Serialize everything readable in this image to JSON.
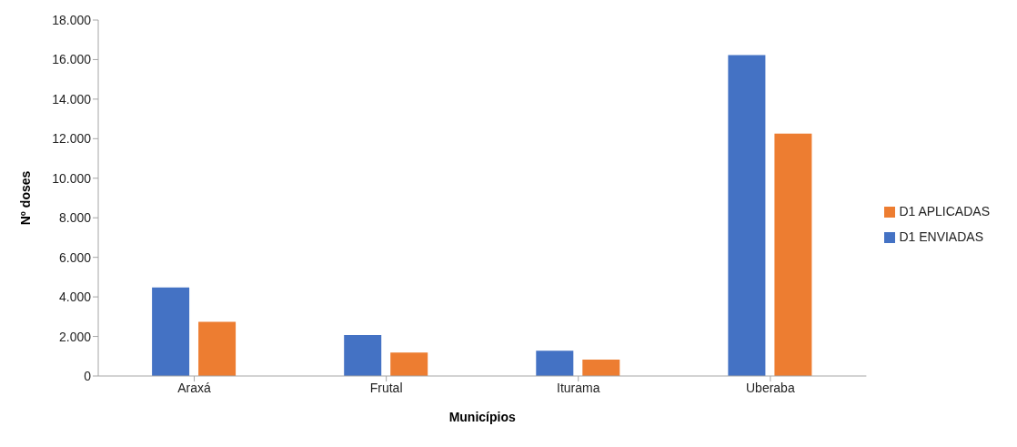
{
  "chart_data": {
    "type": "bar",
    "xlabel": "Municípios",
    "ylabel": "Nº doses",
    "categories": [
      "Araxá",
      "Frutal",
      "Iturama",
      "Uberaba"
    ],
    "series": [
      {
        "name": "D1 ENVIADAS",
        "color": "#4472c4",
        "values": [
          4480,
          2070,
          1280,
          16230
        ]
      },
      {
        "name": "D1 APLICADAS",
        "color": "#ed7d31",
        "values": [
          2740,
          1180,
          830,
          12260
        ]
      }
    ],
    "ylim": [
      0,
      18000
    ],
    "yticks": [
      0,
      {
        "value": 2000,
        "label": "2.000"
      },
      {
        "value": 4000,
        "label": "4.000"
      },
      {
        "value": 6000,
        "label": "6.000"
      },
      {
        "value": 8000,
        "label": "8.000"
      },
      {
        "value": 10000,
        "label": "10.000"
      },
      {
        "value": 12000,
        "label": "12.000"
      },
      {
        "value": 14000,
        "label": "14.000"
      },
      {
        "value": 16000,
        "label": "16.000"
      },
      {
        "value": 18000,
        "label": "18.000"
      }
    ],
    "grid": false,
    "legend": "right"
  }
}
